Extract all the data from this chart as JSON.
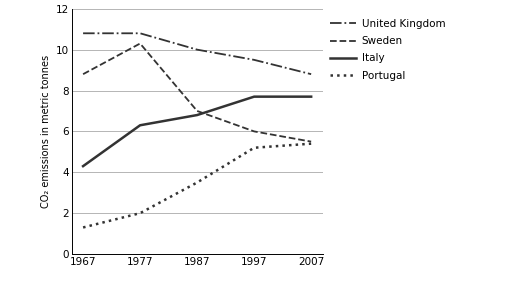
{
  "years": [
    1967,
    1977,
    1987,
    1997,
    2007
  ],
  "united_kingdom": [
    10.8,
    10.8,
    10.0,
    9.5,
    8.8
  ],
  "sweden": [
    8.8,
    10.3,
    7.0,
    6.0,
    5.5
  ],
  "italy": [
    4.3,
    6.3,
    6.8,
    7.7,
    7.7
  ],
  "portugal": [
    1.3,
    2.0,
    3.5,
    5.2,
    5.4
  ],
  "ylabel": "CO₂ emissions in metric tonnes",
  "ylim": [
    0,
    12
  ],
  "yticks": [
    0,
    2,
    4,
    6,
    8,
    10,
    12
  ],
  "xticks": [
    1967,
    1977,
    1987,
    1997,
    2007
  ],
  "legend_labels": [
    "United Kingdom",
    "Sweden",
    "Italy",
    "Portugal"
  ],
  "line_color": "#333333",
  "grid_color": "#aaaaaa",
  "background_color": "#ffffff",
  "uk_lw": 1.3,
  "sweden_lw": 1.3,
  "italy_lw": 1.8,
  "portugal_lw": 1.8
}
